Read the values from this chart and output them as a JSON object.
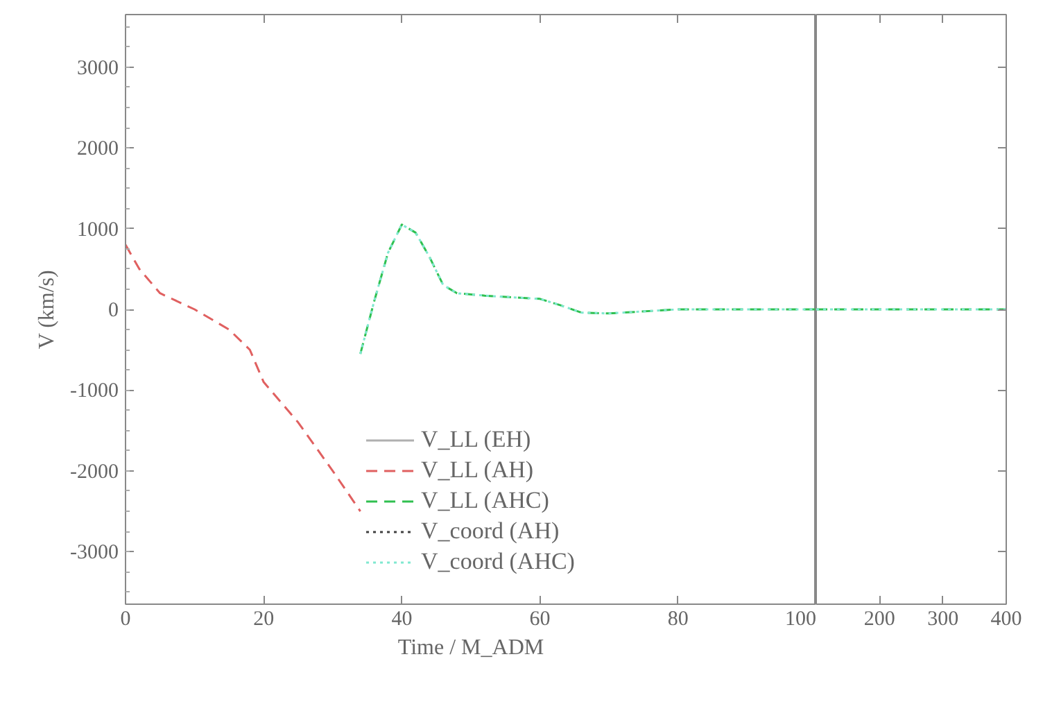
{
  "chart_data": [
    {
      "type": "line",
      "xlabel": "Time / M_ADM",
      "ylabel": "V (km/s)",
      "xlim": [
        0,
        100
      ],
      "xticks": [
        0,
        20,
        40,
        60,
        80,
        100
      ],
      "ylim": [
        -3650,
        3650
      ],
      "yticks": [
        -3000,
        -2000,
        -1000,
        0,
        1000,
        2000,
        3000
      ],
      "grid": false,
      "legend": "bottom",
      "series": [
        {
          "name": "V_LL (EH)",
          "color": "#b0b0b0",
          "line_style": "solid"
        },
        {
          "name": "V_LL (AH)",
          "color": "#e06060",
          "line_style": "dashed",
          "x": [
            0,
            2,
            5,
            10,
            15,
            18,
            20,
            25,
            30,
            34
          ],
          "values": [
            800,
            500,
            200,
            0,
            -250,
            -500,
            -900,
            -1400,
            -2000,
            -2500
          ]
        },
        {
          "name": "V_LL (AHC)",
          "color": "#30c050",
          "line_style": "dashed",
          "x": [
            34,
            36,
            38,
            40,
            42,
            44,
            46,
            48,
            52,
            56,
            60,
            63,
            66,
            70,
            80,
            100
          ],
          "values": [
            -550,
            100,
            700,
            1050,
            950,
            650,
            300,
            200,
            170,
            150,
            130,
            50,
            -40,
            -50,
            0,
            0
          ]
        },
        {
          "name": "V_coord (AH)",
          "color": "#404040",
          "line_style": "dotted"
        },
        {
          "name": "V_coord (AHC)",
          "color": "#80e8d0",
          "line_style": "dotted",
          "x": [
            34,
            36,
            38,
            40,
            42,
            44,
            46,
            48,
            52,
            56,
            60,
            63,
            66,
            70,
            80,
            100
          ],
          "values": [
            -550,
            100,
            700,
            1050,
            950,
            650,
            300,
            200,
            170,
            150,
            130,
            50,
            -40,
            -50,
            0,
            0
          ]
        }
      ]
    },
    {
      "type": "line",
      "xlim": [
        100,
        400
      ],
      "xticks": [
        200,
        300,
        400
      ],
      "ylim": [
        -3650,
        3650
      ],
      "yticks": [
        -3000,
        -2000,
        -1000,
        0,
        1000,
        2000,
        3000
      ],
      "grid": false,
      "tick_labels": "x",
      "series": [
        {
          "color": "#30c050",
          "line_style": "dashed",
          "x": [
            100,
            200,
            300,
            400
          ],
          "values": [
            0,
            0,
            0,
            0
          ]
        },
        {
          "color": "#80e8d0",
          "line_style": "dotted",
          "x": [
            100,
            200,
            300,
            400
          ],
          "values": [
            0,
            0,
            0,
            0
          ]
        }
      ]
    }
  ]
}
